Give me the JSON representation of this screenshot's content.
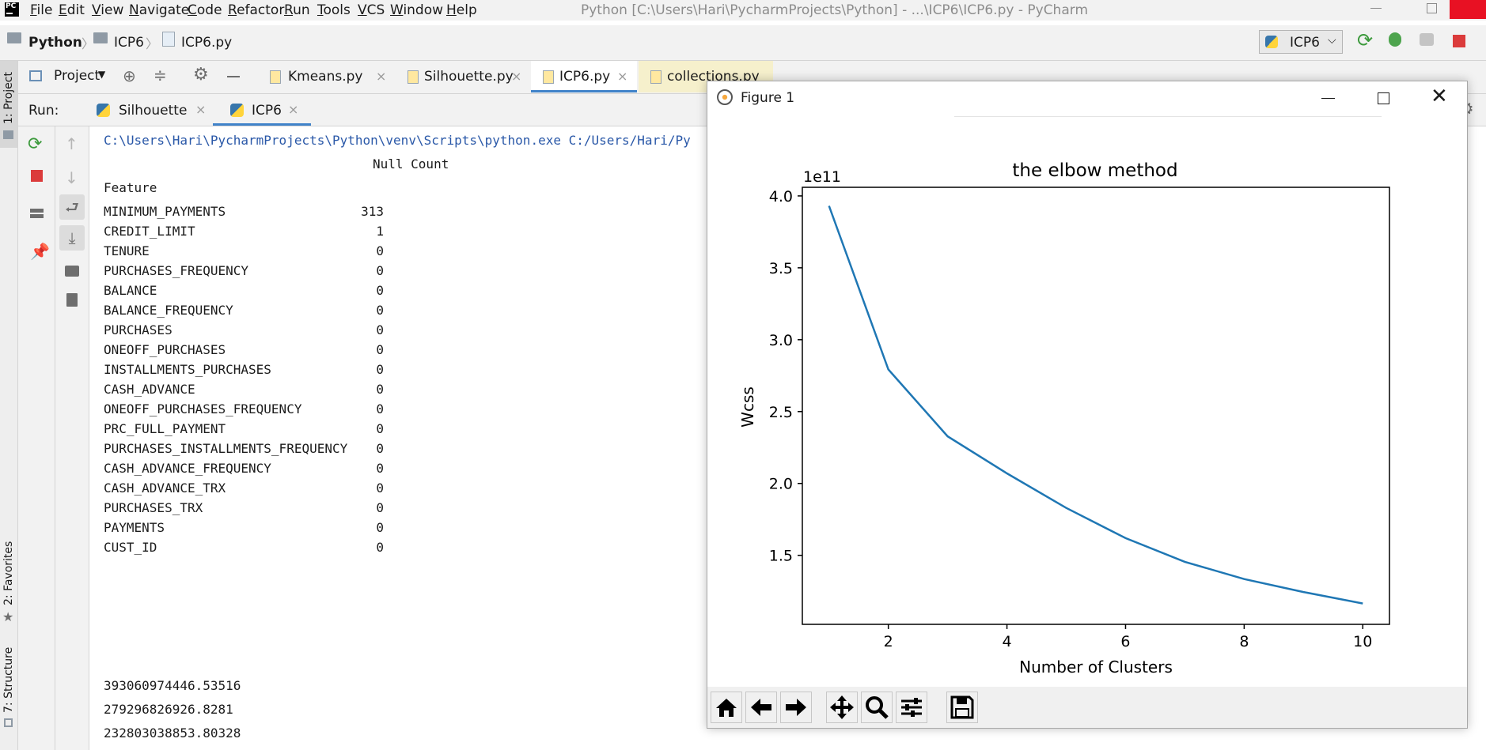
{
  "menubar": {
    "logo": "PC",
    "items": [
      "File",
      "Edit",
      "View",
      "Navigate",
      "Code",
      "Refactor",
      "Run",
      "Tools",
      "VCS",
      "Window",
      "Help"
    ],
    "title": "Python [C:\\Users\\Hari\\PycharmProjects\\Python] - ...\\ICP6\\ICP6.py - PyCharm"
  },
  "navbar": {
    "crumbs": [
      "Python",
      "ICP6",
      "ICP6.py"
    ],
    "run_config": "ICP6"
  },
  "toolwindows": {
    "project": "1: Project",
    "favorites": "2: Favorites",
    "structure": "7: Structure"
  },
  "editor_tabs": {
    "project_label": "Project",
    "tabs": [
      "Kmeans.py",
      "Silhouette.py",
      "ICP6.py",
      "collections.py"
    ]
  },
  "run": {
    "label": "Run:",
    "tabs": [
      "Silhouette",
      "ICP6"
    ]
  },
  "console": {
    "command": "C:\\Users\\Hari\\PycharmProjects\\Python\\venv\\Scripts\\python.exe C:/Users/Hari/Py",
    "header": "Null Count",
    "feature_label": "Feature",
    "rows": [
      {
        "name": "MINIMUM_PAYMENTS",
        "count": "313"
      },
      {
        "name": "CREDIT_LIMIT",
        "count": "1"
      },
      {
        "name": "TENURE",
        "count": "0"
      },
      {
        "name": "PURCHASES_FREQUENCY",
        "count": "0"
      },
      {
        "name": "BALANCE",
        "count": "0"
      },
      {
        "name": "BALANCE_FREQUENCY",
        "count": "0"
      },
      {
        "name": "PURCHASES",
        "count": "0"
      },
      {
        "name": "ONEOFF_PURCHASES",
        "count": "0"
      },
      {
        "name": "INSTALLMENTS_PURCHASES",
        "count": "0"
      },
      {
        "name": "CASH_ADVANCE",
        "count": "0"
      },
      {
        "name": "ONEOFF_PURCHASES_FREQUENCY",
        "count": "0"
      },
      {
        "name": "PRC_FULL_PAYMENT",
        "count": "0"
      },
      {
        "name": "PURCHASES_INSTALLMENTS_FREQUENCY",
        "count": "0"
      },
      {
        "name": "CASH_ADVANCE_FREQUENCY",
        "count": "0"
      },
      {
        "name": "CASH_ADVANCE_TRX",
        "count": "0"
      },
      {
        "name": "PURCHASES_TRX",
        "count": "0"
      },
      {
        "name": "PAYMENTS",
        "count": "0"
      },
      {
        "name": "CUST_ID",
        "count": "0"
      }
    ],
    "outputs": [
      "393060974446.53516",
      "279296826926.8281",
      "232803038853.80328"
    ]
  },
  "figure": {
    "title": "Figure 1",
    "toolbar_icons": [
      "home-icon",
      "back-arrow-icon",
      "forward-arrow-icon",
      "pan-icon",
      "zoom-icon",
      "configure-icon",
      "save-icon"
    ]
  },
  "chart_data": {
    "type": "line",
    "title": "the elbow method",
    "xlabel": "Number of Clusters",
    "ylabel": "Wcss",
    "offset_text": "1e11",
    "x": [
      1,
      2,
      3,
      4,
      5,
      6,
      7,
      8,
      9,
      10
    ],
    "series": [
      {
        "values": [
          3.93060974446,
          2.79296826926,
          2.32803038853,
          2.07,
          1.83,
          1.62,
          1.455,
          1.335,
          1.245,
          1.165
        ]
      }
    ],
    "xticks": [
      2,
      4,
      6,
      8,
      10
    ],
    "yticks": [
      1.5,
      2.0,
      2.5,
      3.0,
      3.5,
      4.0
    ],
    "xlim": [
      0.55,
      10.45
    ],
    "ylim": [
      1.02,
      4.06
    ],
    "line_color": "#1f77b4",
    "grid": false
  }
}
